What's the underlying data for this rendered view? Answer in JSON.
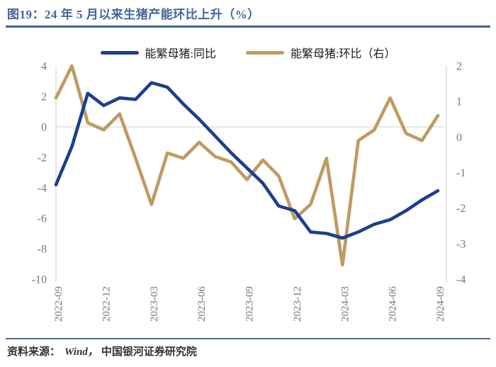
{
  "title": {
    "text": "图19：24 年 5 月以来生猪产能环比上升（%）"
  },
  "legend": {
    "items": [
      {
        "label": "能繁母猪:同比",
        "color": "#1c3e8f"
      },
      {
        "label": "能繁母猪:环比（右）",
        "color": "#bf9b62"
      }
    ]
  },
  "footer": {
    "prefix": "资料来源：",
    "source": "Wind，",
    "institution": "中国银河证券研究院"
  },
  "colors": {
    "title": "#44659b",
    "rule": "#44659b",
    "axis_label": "#767676",
    "grid": "#d9d9d9",
    "background": "#ffffff"
  },
  "chart_data": {
    "type": "line",
    "title": "图19：24 年 5 月以来生猪产能环比上升（%）",
    "x": [
      "2022-09",
      "2022-10",
      "2022-11",
      "2022-12",
      "2023-01",
      "2023-02",
      "2023-03",
      "2023-04",
      "2023-05",
      "2023-06",
      "2023-07",
      "2023-08",
      "2023-09",
      "2023-10",
      "2023-11",
      "2023-12",
      "2024-01",
      "2024-02",
      "2024-03",
      "2024-04",
      "2024-05",
      "2024-06",
      "2024-07",
      "2024-08",
      "2024-09"
    ],
    "x_tick_labels": [
      "2022-09",
      "2022-12",
      "2023-03",
      "2023-06",
      "2023-09",
      "2023-12",
      "2024-03",
      "2024-06",
      "2024-09"
    ],
    "series": [
      {
        "name": "能繁母猪:同比",
        "axis": "left",
        "color": "#1c3e8f",
        "values": [
          -3.8,
          -1.3,
          2.2,
          1.4,
          1.9,
          1.8,
          2.9,
          2.6,
          1.5,
          0.5,
          -0.6,
          -1.7,
          -2.7,
          -3.7,
          -5.2,
          -5.5,
          -6.9,
          -7.0,
          -7.3,
          -6.9,
          -6.4,
          -6.1,
          -5.5,
          -4.8,
          -4.2
        ]
      },
      {
        "name": "能繁母猪:环比（右）",
        "axis": "right",
        "color": "#bf9b62",
        "values": [
          1.1,
          2.0,
          0.4,
          0.2,
          0.65,
          -0.6,
          -1.9,
          -0.45,
          -0.6,
          -0.15,
          -0.55,
          -0.7,
          -1.2,
          -0.65,
          -1.1,
          -2.3,
          -1.9,
          -0.6,
          -3.6,
          -0.1,
          0.2,
          1.1,
          0.1,
          -0.1,
          0.6
        ]
      }
    ],
    "left_axis": {
      "ticks": [
        4,
        2,
        0,
        -2,
        -4,
        -6,
        -8,
        -10
      ],
      "min": -10,
      "max": 4
    },
    "right_axis": {
      "ticks": [
        2,
        1,
        0,
        -1,
        -2,
        -3,
        -4
      ],
      "min": -4,
      "max": 2
    },
    "grid": "single horizontal gridline at left-axis 0",
    "legend_position": "top-center"
  }
}
